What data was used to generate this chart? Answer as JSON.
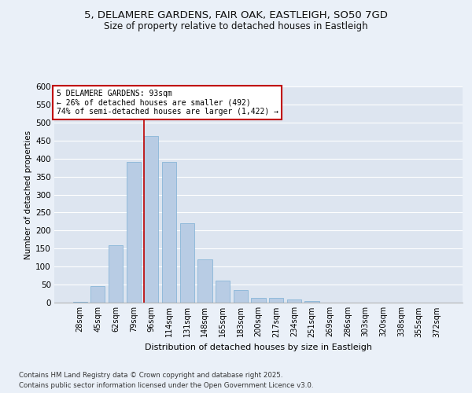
{
  "title_line1": "5, DELAMERE GARDENS, FAIR OAK, EASTLEIGH, SO50 7GD",
  "title_line2": "Size of property relative to detached houses in Eastleigh",
  "xlabel": "Distribution of detached houses by size in Eastleigh",
  "ylabel": "Number of detached properties",
  "categories": [
    "28sqm",
    "45sqm",
    "62sqm",
    "79sqm",
    "96sqm",
    "114sqm",
    "131sqm",
    "148sqm",
    "165sqm",
    "183sqm",
    "200sqm",
    "217sqm",
    "234sqm",
    "251sqm",
    "269sqm",
    "286sqm",
    "303sqm",
    "320sqm",
    "338sqm",
    "355sqm",
    "372sqm"
  ],
  "values": [
    2,
    45,
    160,
    390,
    463,
    390,
    220,
    120,
    62,
    35,
    14,
    14,
    8,
    5,
    0,
    0,
    0,
    0,
    0,
    0,
    0
  ],
  "bar_color": "#b8cce4",
  "bar_edge_color": "#7bafd4",
  "vline_bar_index": 4,
  "vline_color": "#c00000",
  "annotation_title": "5 DELAMERE GARDENS: 93sqm",
  "annotation_line1": "← 26% of detached houses are smaller (492)",
  "annotation_line2": "74% of semi-detached houses are larger (1,422) →",
  "annotation_box_color": "#ffffff",
  "annotation_box_edge": "#c00000",
  "footnote1": "Contains HM Land Registry data © Crown copyright and database right 2025.",
  "footnote2": "Contains public sector information licensed under the Open Government Licence v3.0.",
  "ylim": [
    0,
    600
  ],
  "yticks": [
    0,
    50,
    100,
    150,
    200,
    250,
    300,
    350,
    400,
    450,
    500,
    550,
    600
  ],
  "background_color": "#eaf0f8",
  "plot_bg_color": "#dde5f0",
  "grid_color": "#ffffff"
}
